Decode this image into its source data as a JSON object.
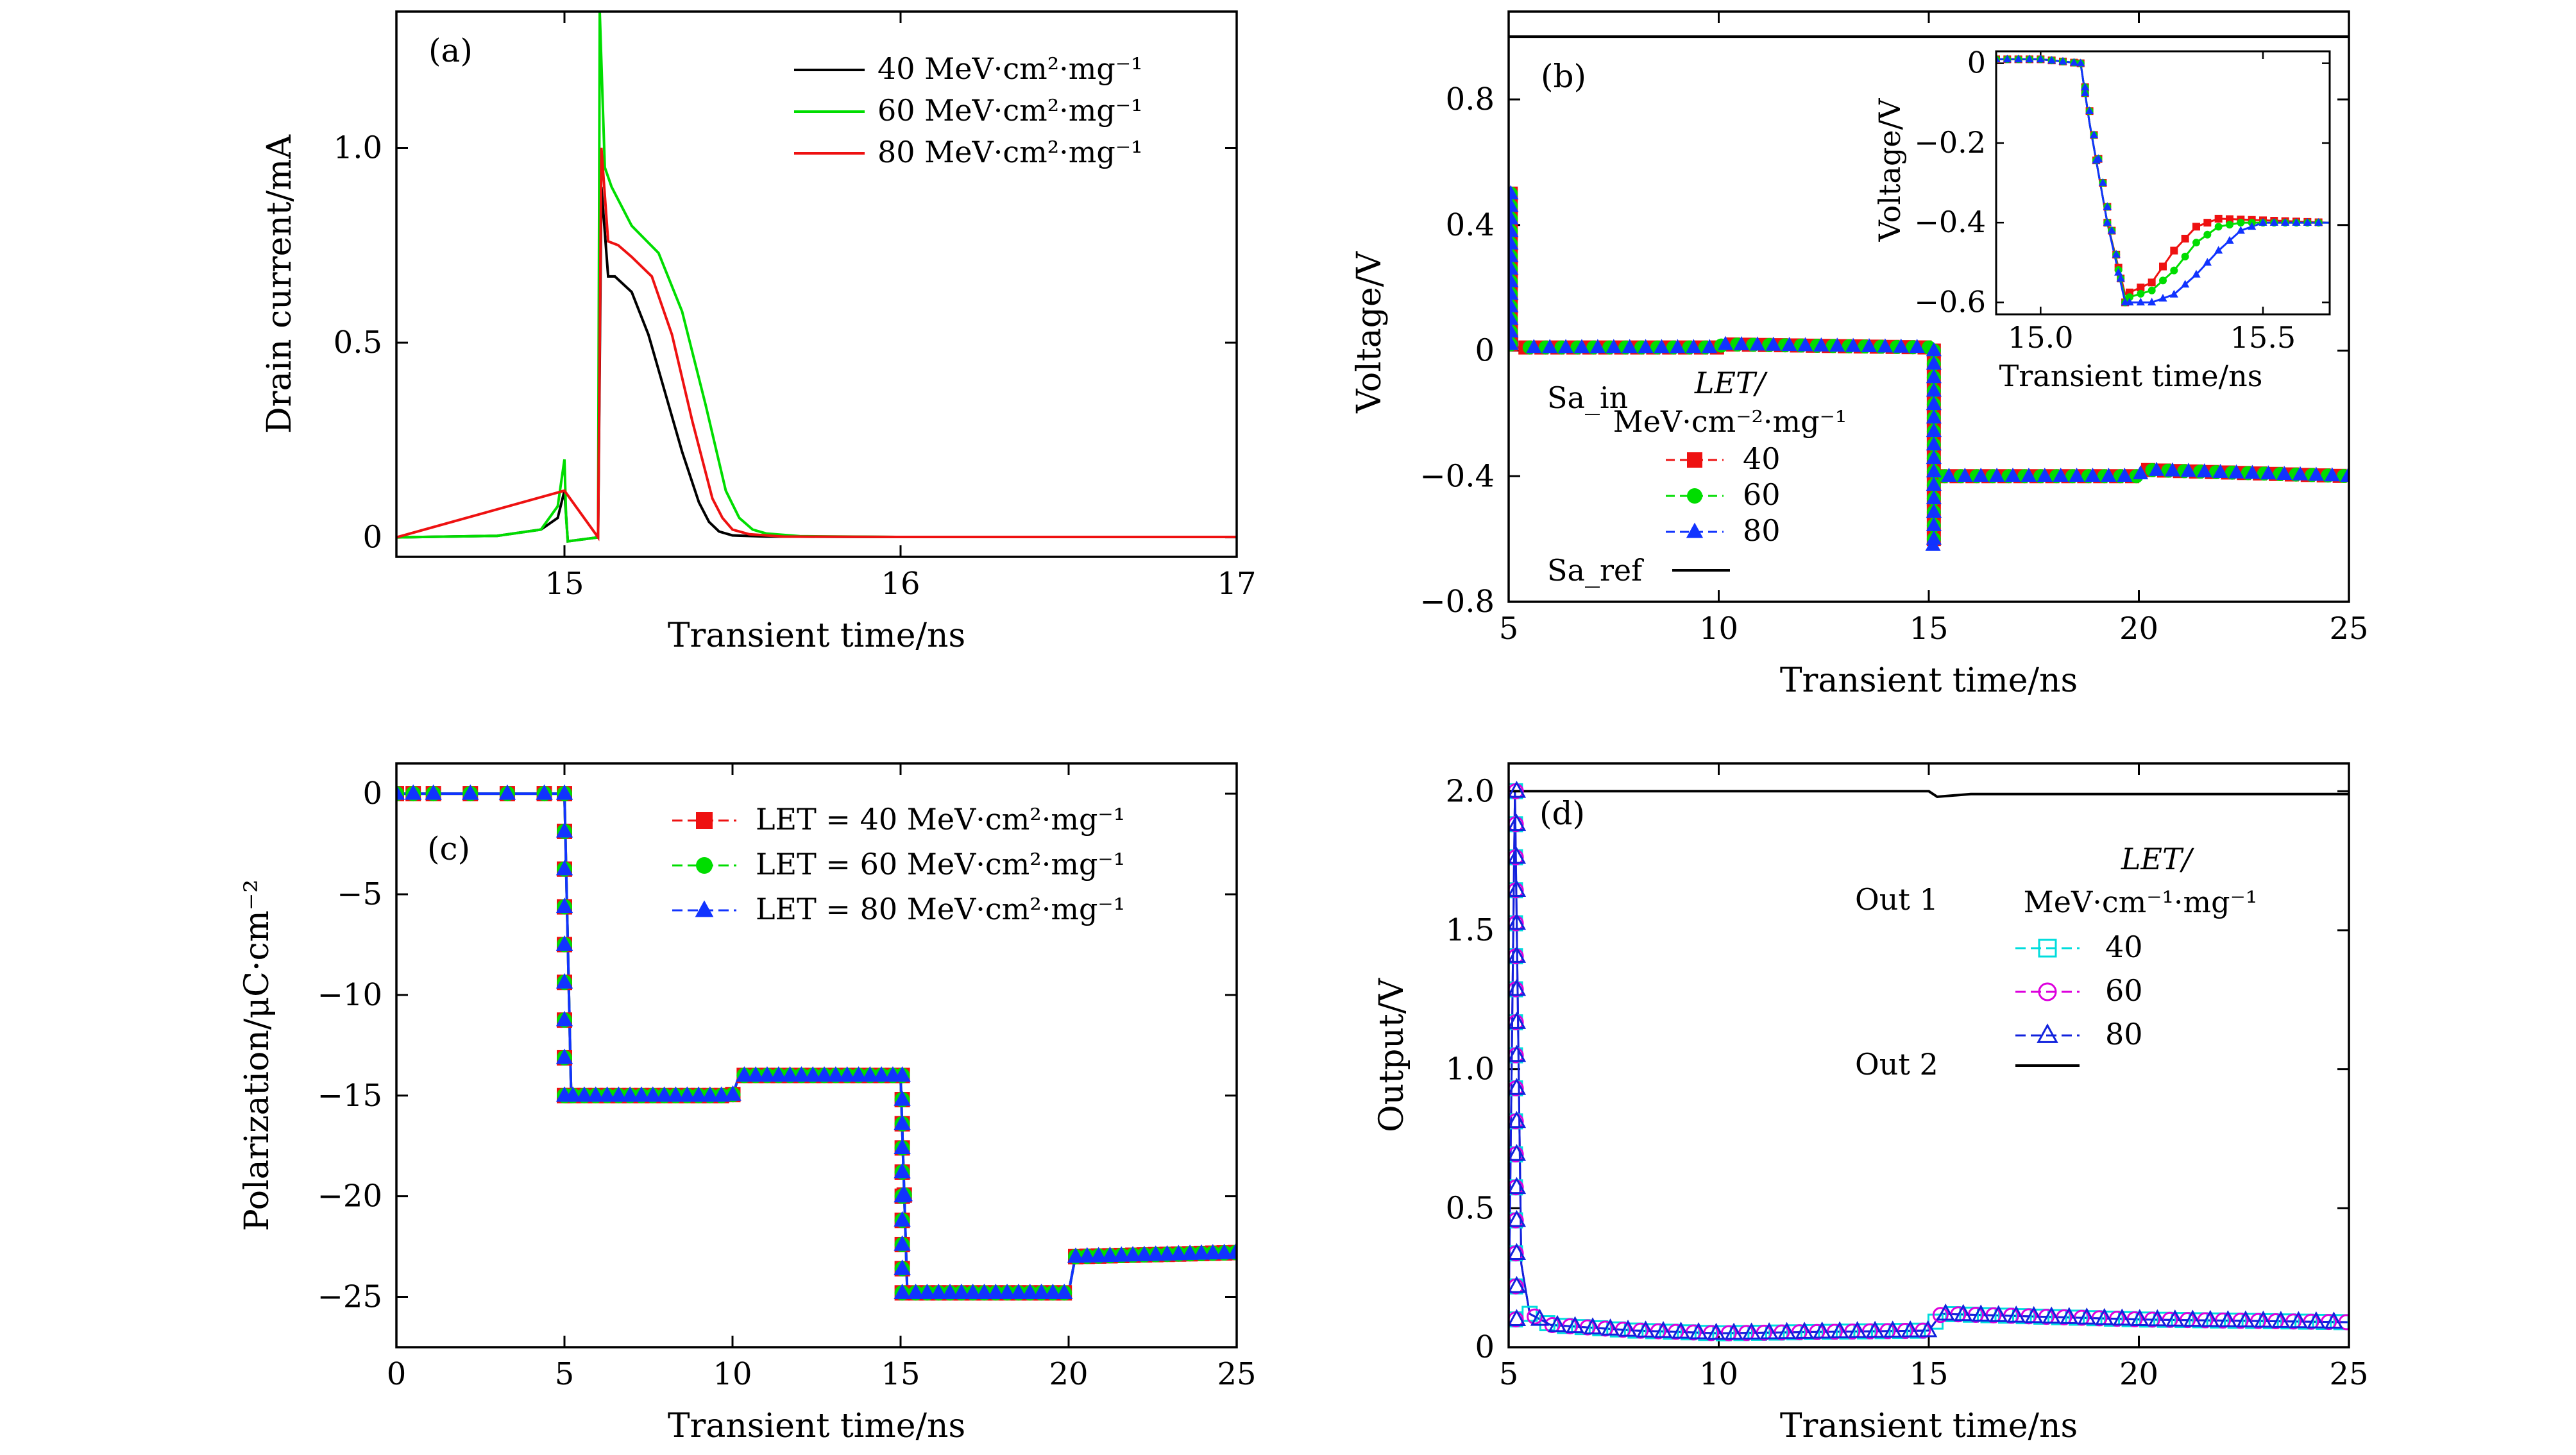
{
  "figure": {
    "panels": [
      "(a)",
      "(b)",
      "(c)",
      "(d)"
    ]
  },
  "chart_data": [
    {
      "panel": "(a)",
      "type": "line",
      "xlabel": "Transient time/ns",
      "ylabel": "Drain current/mA",
      "xlim": [
        14.5,
        17
      ],
      "ylim": [
        -0.05,
        1.35
      ],
      "xticks": [
        15,
        16,
        17
      ],
      "yticks": [
        0,
        0.5,
        1.0
      ],
      "legend_position": "top-right",
      "series": [
        {
          "name": "40 MeV·cm²·mg⁻¹",
          "color": "#000000",
          "x": [
            14.5,
            14.8,
            14.93,
            14.98,
            15.0,
            15.01,
            15.1,
            15.11,
            15.13,
            15.15,
            15.2,
            15.25,
            15.3,
            15.35,
            15.4,
            15.43,
            15.46,
            15.5,
            15.6,
            16.0,
            17.0
          ],
          "y": [
            0,
            0.004,
            0.02,
            0.05,
            0.12,
            -0.01,
            0.0,
            0.9,
            0.67,
            0.67,
            0.63,
            0.52,
            0.37,
            0.22,
            0.09,
            0.04,
            0.015,
            0.005,
            0.002,
            0.001,
            0.001
          ]
        },
        {
          "name": "60 MeV·cm²·mg⁻¹",
          "color": "#00dd00",
          "x": [
            14.5,
            14.8,
            14.93,
            14.98,
            15.0,
            15.005,
            15.01,
            15.1,
            15.105,
            15.12,
            15.14,
            15.2,
            15.28,
            15.35,
            15.42,
            15.48,
            15.52,
            15.56,
            15.6,
            15.7,
            16.0,
            17.0
          ],
          "y": [
            0,
            0.004,
            0.02,
            0.08,
            0.2,
            0.05,
            -0.01,
            0.0,
            1.35,
            0.95,
            0.9,
            0.8,
            0.73,
            0.58,
            0.34,
            0.12,
            0.05,
            0.02,
            0.01,
            0.003,
            0.001,
            0.001
          ]
        },
        {
          "name": "80 MeV·cm²·mg⁻¹",
          "color": "#ee1111",
          "x": [
            14.5,
            15.0,
            15.1,
            15.11,
            15.13,
            15.16,
            15.2,
            15.26,
            15.32,
            15.38,
            15.44,
            15.47,
            15.5,
            15.55,
            15.65,
            16.0,
            17.0
          ],
          "y": [
            0,
            0.12,
            0.0,
            1.0,
            0.76,
            0.75,
            0.72,
            0.67,
            0.52,
            0.3,
            0.1,
            0.05,
            0.02,
            0.008,
            0.002,
            0.001,
            0.001
          ]
        }
      ]
    },
    {
      "panel": "(b)",
      "type": "line",
      "xlabel": "Transient time/ns",
      "ylabel": "Voltage/V",
      "xlim": [
        5,
        25
      ],
      "ylim": [
        -0.8,
        1.08
      ],
      "xticks": [
        5,
        10,
        15,
        20,
        25
      ],
      "yticks": [
        -0.8,
        -0.4,
        0,
        0.4,
        0.8
      ],
      "legend_position": "lower-left",
      "legend_title": "LET/",
      "legend_units": "MeV·cm⁻²·mg⁻¹",
      "group_labels": [
        "Sa_in",
        "Sa_ref"
      ],
      "series": [
        {
          "name": "40",
          "color": "#ee1111",
          "marker": "square",
          "x": [
            5,
            5.1,
            5.2,
            5.4,
            10,
            10.1,
            15,
            15.1,
            15.25,
            15.6,
            20,
            20.1,
            25
          ],
          "y": [
            0.3,
            0.5,
            0.01,
            0.01,
            0.01,
            0.02,
            0.01,
            -0.6,
            -0.4,
            -0.4,
            -0.4,
            -0.38,
            -0.4
          ]
        },
        {
          "name": "60",
          "color": "#00dd00",
          "marker": "circle",
          "x": [
            5,
            5.1,
            5.2,
            5.4,
            10,
            10.1,
            15,
            15.1,
            15.25,
            15.6,
            20,
            20.1,
            25
          ],
          "y": [
            0.3,
            0.5,
            0.01,
            0.01,
            0.01,
            0.02,
            0.01,
            -0.61,
            -0.4,
            -0.4,
            -0.4,
            -0.38,
            -0.4
          ]
        },
        {
          "name": "80",
          "color": "#1133ff",
          "marker": "triangle",
          "x": [
            5,
            5.1,
            5.2,
            5.4,
            10,
            10.1,
            15,
            15.1,
            15.25,
            15.6,
            20,
            20.1,
            25
          ],
          "y": [
            0.3,
            0.5,
            0.01,
            0.01,
            0.01,
            0.02,
            0.01,
            -0.62,
            -0.4,
            -0.4,
            -0.4,
            -0.38,
            -0.4
          ]
        },
        {
          "name": "Sa_ref",
          "color": "#000000",
          "marker": "none",
          "x": [
            5,
            25
          ],
          "y": [
            1.0,
            1.0
          ]
        }
      ],
      "inset": {
        "xlabel": "Transient time/ns",
        "ylabel": "Voltage/V",
        "xlim": [
          14.9,
          15.65
        ],
        "ylim": [
          -0.63,
          0.03
        ],
        "xticks": [
          15.0,
          15.5
        ],
        "yticks": [
          0,
          -0.2,
          -0.4,
          -0.6
        ],
        "series": [
          {
            "name": "40",
            "color": "#ee1111",
            "x": [
              14.9,
              15.0,
              15.09,
              15.11,
              15.15,
              15.19,
              15.25,
              15.3,
              15.35,
              15.4,
              15.65
            ],
            "y": [
              0.01,
              0.01,
              0.0,
              -0.15,
              -0.4,
              -0.58,
              -0.55,
              -0.47,
              -0.41,
              -0.39,
              -0.4
            ]
          },
          {
            "name": "60",
            "color": "#00dd00",
            "x": [
              14.9,
              15.0,
              15.09,
              15.11,
              15.15,
              15.19,
              15.25,
              15.3,
              15.35,
              15.4,
              15.45,
              15.65
            ],
            "y": [
              0.01,
              0.01,
              0.0,
              -0.15,
              -0.4,
              -0.59,
              -0.57,
              -0.52,
              -0.45,
              -0.41,
              -0.4,
              -0.4
            ]
          },
          {
            "name": "80",
            "color": "#1133ff",
            "x": [
              14.9,
              15.0,
              15.09,
              15.11,
              15.15,
              15.19,
              15.25,
              15.3,
              15.35,
              15.4,
              15.45,
              15.5,
              15.65
            ],
            "y": [
              0.01,
              0.01,
              0.0,
              -0.15,
              -0.4,
              -0.6,
              -0.6,
              -0.58,
              -0.53,
              -0.47,
              -0.42,
              -0.4,
              -0.4
            ]
          }
        ]
      }
    },
    {
      "panel": "(c)",
      "type": "line",
      "xlabel": "Transient time/ns",
      "ylabel": "Polarization/μC·cm⁻²",
      "xlim": [
        0,
        25
      ],
      "ylim": [
        -27.5,
        1.5
      ],
      "xticks": [
        0,
        5,
        10,
        15,
        20,
        25
      ],
      "yticks": [
        0,
        -5,
        -10,
        -15,
        -20,
        -25
      ],
      "legend_position": "top-right",
      "series": [
        {
          "name": "LET = 40 MeV·cm²·mg⁻¹",
          "color": "#ee1111",
          "marker": "square",
          "x": [
            0,
            4.9,
            5.0,
            5.2,
            10,
            10.2,
            15,
            15.2,
            20,
            20.2,
            25
          ],
          "y": [
            0,
            0,
            0,
            -15,
            -15,
            -14,
            -14,
            -24.8,
            -24.8,
            -23,
            -22.8
          ]
        },
        {
          "name": "LET = 60 MeV·cm²·mg⁻¹",
          "color": "#00dd00",
          "marker": "circle",
          "x": [
            0,
            4.9,
            5.0,
            5.2,
            10,
            10.2,
            15,
            15.2,
            20,
            20.2,
            25
          ],
          "y": [
            0,
            0,
            0,
            -15,
            -15,
            -14,
            -14,
            -24.8,
            -24.8,
            -23,
            -22.8
          ]
        },
        {
          "name": "LET = 80 MeV·cm²·mg⁻¹",
          "color": "#1133ff",
          "marker": "triangle",
          "x": [
            0,
            4.9,
            5.0,
            5.2,
            10,
            10.2,
            15,
            15.2,
            20,
            20.2,
            25
          ],
          "y": [
            0,
            0,
            0,
            -15,
            -15,
            -14,
            -14,
            -24.8,
            -24.8,
            -23,
            -22.8
          ]
        }
      ]
    },
    {
      "panel": "(d)",
      "type": "line",
      "xlabel": "Transient time/ns",
      "ylabel": "Output/V",
      "xlim": [
        5,
        25
      ],
      "ylim": [
        0,
        2.1
      ],
      "xticks": [
        5,
        10,
        15,
        20,
        25
      ],
      "yticks": [
        0,
        0.5,
        1.0,
        1.5,
        2.0
      ],
      "legend_position": "top-right",
      "legend_title": "LET/",
      "legend_units": "MeV·cm⁻¹·mg⁻¹",
      "group_labels": [
        "Out 1",
        "Out 2"
      ],
      "series": [
        {
          "name": "40",
          "color": "#00dddd",
          "marker": "open-square",
          "x": [
            5,
            5.15,
            5.3,
            5.5,
            6,
            8,
            10,
            15,
            15.3,
            20,
            25
          ],
          "y": [
            0.1,
            2.0,
            0.3,
            0.12,
            0.08,
            0.06,
            0.05,
            0.06,
            0.12,
            0.1,
            0.09
          ]
        },
        {
          "name": "60",
          "color": "#dd00dd",
          "marker": "open-circle",
          "x": [
            5,
            5.15,
            5.3,
            5.5,
            6,
            8,
            10,
            15,
            15.3,
            20,
            25
          ],
          "y": [
            0.1,
            2.0,
            0.3,
            0.12,
            0.08,
            0.06,
            0.05,
            0.06,
            0.12,
            0.1,
            0.09
          ]
        },
        {
          "name": "80",
          "color": "#1122dd",
          "marker": "open-triangle",
          "x": [
            5,
            5.15,
            5.3,
            5.5,
            6,
            8,
            10,
            15,
            15.3,
            20,
            25
          ],
          "y": [
            0.1,
            2.0,
            0.3,
            0.12,
            0.08,
            0.06,
            0.05,
            0.06,
            0.12,
            0.1,
            0.09
          ]
        },
        {
          "name": "Out 2",
          "color": "#000000",
          "marker": "none",
          "x": [
            5,
            15,
            15.2,
            16,
            25
          ],
          "y": [
            2.0,
            2.0,
            1.98,
            1.99,
            1.99
          ]
        }
      ]
    }
  ]
}
